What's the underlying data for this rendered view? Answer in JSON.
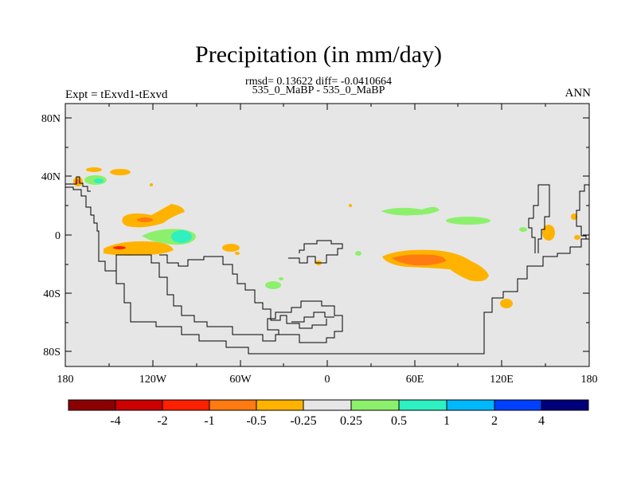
{
  "title": "Precipitation (in mm/day)",
  "stats": "rmsd= 0.13622 diff= -0.0410664",
  "cases": "535_0_MaBP - 535_0_MaBP",
  "experiment": "Expt = tExvd1-tExvd",
  "season": "ANN",
  "lat_labels": [
    "80N",
    "40N",
    "0",
    "40S",
    "80S"
  ],
  "lon_labels": [
    "180",
    "120W",
    "60W",
    "0",
    "60E",
    "120E",
    "180"
  ],
  "colorbar": {
    "colors": [
      "#8b0000",
      "#cc0000",
      "#ff2000",
      "#ff7a10",
      "#ffb300",
      "#e6e6e6",
      "#8cf06c",
      "#2ef0c0",
      "#00b8ff",
      "#0040ff",
      "#00007a"
    ],
    "labels": [
      "-4",
      "-2",
      "-1",
      "-0.5",
      "-0.25",
      "0.25",
      "0.5",
      "1",
      "2",
      "4"
    ]
  },
  "colors": {
    "background": "#e6e6e6",
    "coast": "#000000"
  }
}
